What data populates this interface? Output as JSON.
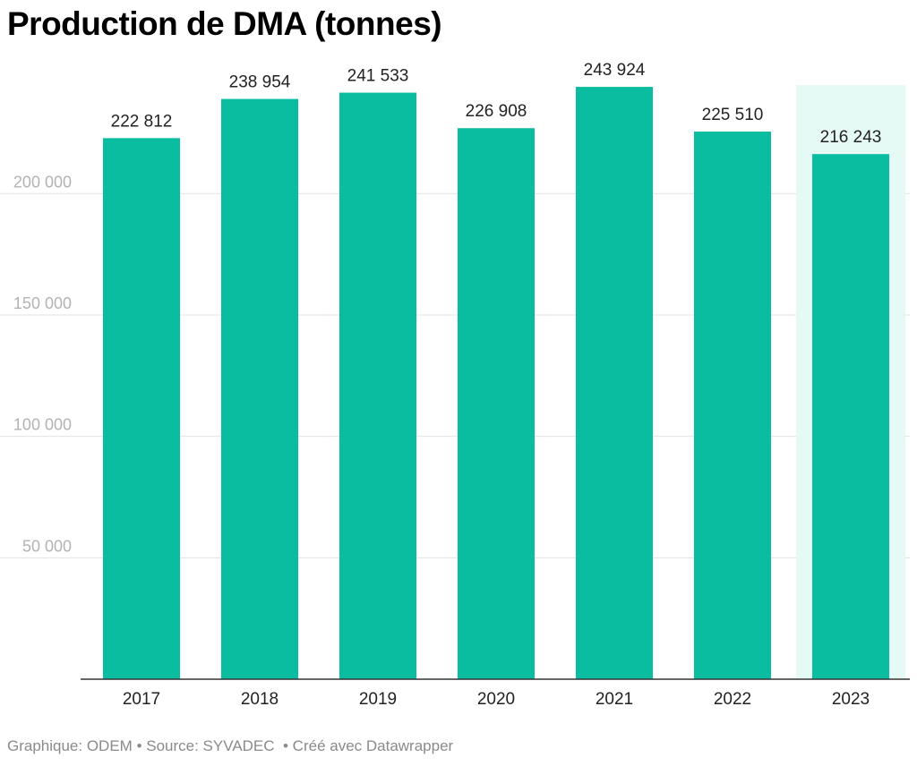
{
  "chart_data": {
    "type": "bar",
    "title": "Production de DMA (tonnes)",
    "categories": [
      "2017",
      "2018",
      "2019",
      "2020",
      "2021",
      "2022",
      "2023"
    ],
    "values": [
      222812,
      238954,
      241533,
      226908,
      243924,
      225510,
      216243
    ],
    "value_labels": [
      "222 812",
      "238 954",
      "241 533",
      "226 908",
      "243 924",
      "225 510",
      "216 243"
    ],
    "y_ticks": [
      50000,
      100000,
      150000,
      200000
    ],
    "y_tick_labels": [
      "50 000",
      "100 000",
      "150 000",
      "200 000"
    ],
    "ylim": [
      0,
      250000
    ],
    "grid": true,
    "highlighted_category": "2023",
    "xlabel": "",
    "ylabel": ""
  },
  "colors": {
    "bar": "#0abca0",
    "highlight_background": "#e6faf5",
    "grid": "#e2e2e2",
    "axis": "#333333",
    "tick_label": "#b3b3b3",
    "value_label": "#222222",
    "footer": "#8a8a8a"
  },
  "footer": {
    "credit": "Graphique: ODEM",
    "separator1": " • ",
    "source": "Source: SYVADEC",
    "separator2": "  • ",
    "made_with": "Créé avec Datawrapper"
  }
}
